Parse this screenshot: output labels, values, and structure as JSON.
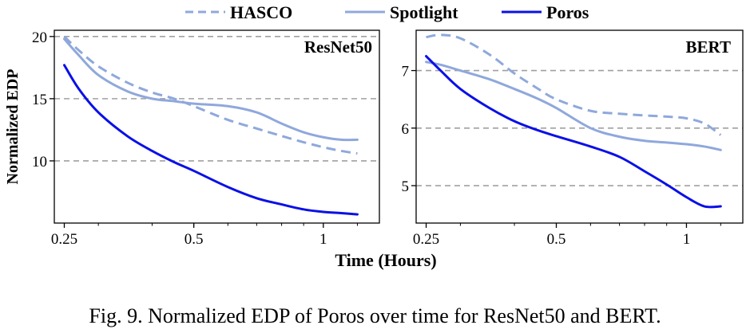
{
  "colors": {
    "hasco": "#8fa8dc",
    "spotlight": "#8fa8dc",
    "poros": "#0a10e6",
    "grid": "#a0a0a0"
  },
  "legend": [
    "HASCO",
    "Spotlight",
    "Poros"
  ],
  "xlabel": "Time (Hours)",
  "ylabel": "Normalized EDP",
  "caption": "Fig. 9.  Normalized EDP of Poros over time for ResNet50 and BERT.",
  "chart_data": [
    {
      "type": "line",
      "title": "ResNet50",
      "xscale": "log",
      "xlim": [
        0.237,
        1.35
      ],
      "ylim": [
        5,
        20.5
      ],
      "xticks": [
        0.25,
        0.5,
        1
      ],
      "xtick_labels": [
        "0.25",
        "0.5",
        "1"
      ],
      "yticks": [
        10,
        15,
        20
      ],
      "ytick_labels": [
        "10",
        "15",
        "20"
      ],
      "grid": "horizontal dashed",
      "series": [
        {
          "name": "HASCO",
          "style": "dashed",
          "x": [
            0.25,
            0.27,
            0.3,
            0.35,
            0.4,
            0.45,
            0.5,
            0.6,
            0.7,
            0.8,
            0.9,
            1.0,
            1.1,
            1.2
          ],
          "y": [
            20.0,
            18.9,
            17.6,
            16.3,
            15.5,
            15.0,
            14.4,
            13.3,
            12.6,
            12.0,
            11.5,
            11.1,
            10.8,
            10.6
          ]
        },
        {
          "name": "Spotlight",
          "style": "solid",
          "x": [
            0.25,
            0.27,
            0.3,
            0.35,
            0.4,
            0.45,
            0.5,
            0.6,
            0.7,
            0.8,
            0.9,
            1.0,
            1.1,
            1.2
          ],
          "y": [
            19.8,
            18.5,
            16.9,
            15.6,
            15.0,
            14.8,
            14.6,
            14.4,
            13.9,
            13.0,
            12.3,
            11.9,
            11.7,
            11.7
          ]
        },
        {
          "name": "Poros",
          "style": "solid",
          "x": [
            0.25,
            0.27,
            0.3,
            0.35,
            0.4,
            0.45,
            0.5,
            0.6,
            0.7,
            0.8,
            0.9,
            1.0,
            1.1,
            1.2
          ],
          "y": [
            17.7,
            15.8,
            13.9,
            12.0,
            10.8,
            9.9,
            9.2,
            7.9,
            7.0,
            6.5,
            6.1,
            5.9,
            5.8,
            5.7
          ]
        }
      ]
    },
    {
      "type": "line",
      "title": "BERT",
      "xscale": "log",
      "xlim": [
        0.237,
        1.35
      ],
      "ylim": [
        4.35,
        7.7
      ],
      "xticks": [
        0.25,
        0.5,
        1
      ],
      "xtick_labels": [
        "0.25",
        "0.5",
        "1"
      ],
      "yticks": [
        5,
        6,
        7
      ],
      "ytick_labels": [
        "5",
        "6",
        "7"
      ],
      "grid": "horizontal dashed",
      "series": [
        {
          "name": "HASCO",
          "style": "dashed",
          "x": [
            0.25,
            0.27,
            0.3,
            0.35,
            0.4,
            0.45,
            0.5,
            0.6,
            0.7,
            0.8,
            0.9,
            1.0,
            1.1,
            1.2
          ],
          "y": [
            7.58,
            7.62,
            7.56,
            7.28,
            6.95,
            6.7,
            6.5,
            6.3,
            6.25,
            6.22,
            6.2,
            6.17,
            6.08,
            5.88
          ]
        },
        {
          "name": "Spotlight",
          "style": "solid",
          "x": [
            0.25,
            0.27,
            0.3,
            0.35,
            0.4,
            0.45,
            0.5,
            0.6,
            0.7,
            0.8,
            0.9,
            1.0,
            1.1,
            1.2
          ],
          "y": [
            7.15,
            7.1,
            7.0,
            6.85,
            6.68,
            6.52,
            6.35,
            6.0,
            5.85,
            5.78,
            5.75,
            5.72,
            5.68,
            5.62
          ]
        },
        {
          "name": "Poros",
          "style": "solid",
          "x": [
            0.25,
            0.27,
            0.3,
            0.35,
            0.4,
            0.45,
            0.5,
            0.6,
            0.7,
            0.8,
            0.9,
            1.0,
            1.1,
            1.2
          ],
          "y": [
            7.25,
            7.0,
            6.68,
            6.35,
            6.12,
            5.97,
            5.86,
            5.68,
            5.5,
            5.25,
            5.02,
            4.8,
            4.64,
            4.64
          ]
        }
      ]
    }
  ]
}
